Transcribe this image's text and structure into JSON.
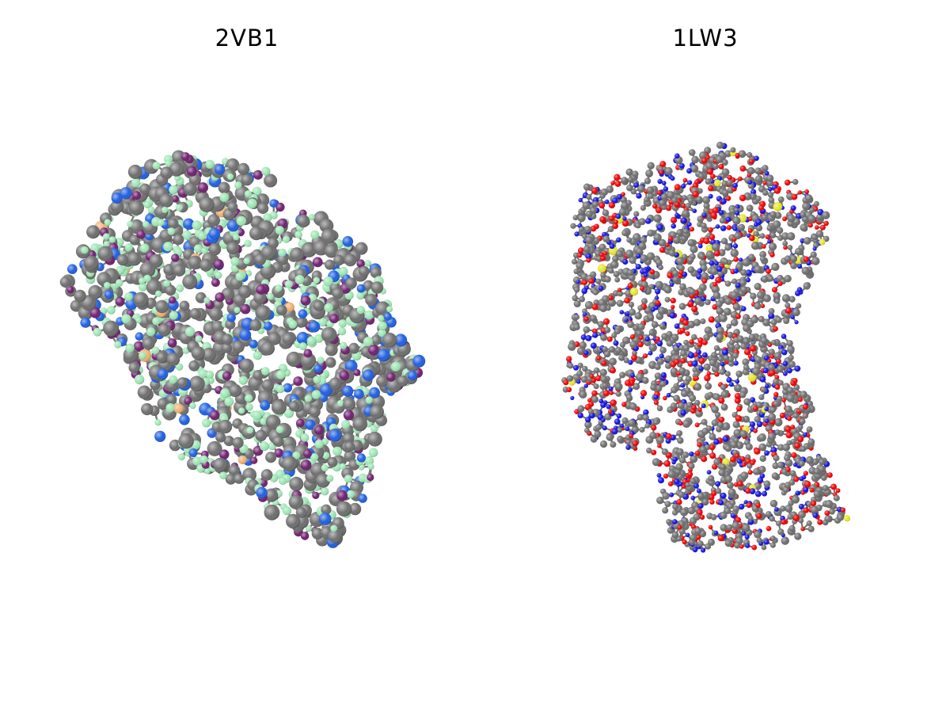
{
  "panels": [
    {
      "title": "2VB1",
      "style": "ball-and-stick",
      "atom_colors": {
        "carbon": "#6e6e6e",
        "hydrogen": "#9ee6b4",
        "nitrogen": "#1f5fe0",
        "oxygen": "#702070",
        "sulfur": "#f0b070"
      }
    },
    {
      "title": "1LW3",
      "style": "ball-and-stick",
      "atom_colors": {
        "carbon": "#6e6e6e",
        "nitrogen": "#1010e0",
        "oxygen": "#ee0000",
        "sulfur": "#e6e62a"
      }
    }
  ]
}
